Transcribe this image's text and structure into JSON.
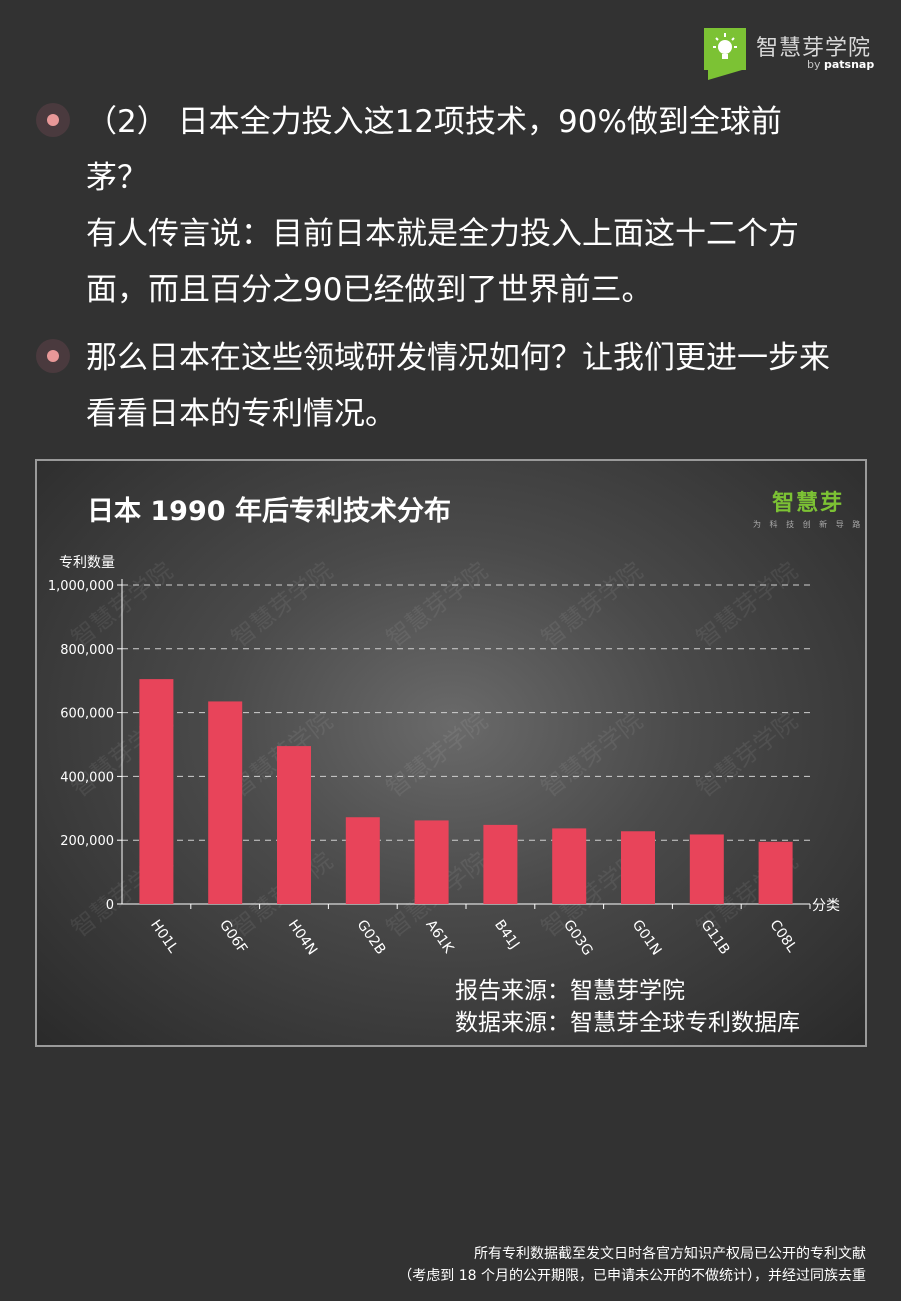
{
  "header": {
    "brand_name": "智慧芽学院",
    "brand_by": "by",
    "brand_partner": "patsnap",
    "logo_icon": "lightbulb-icon"
  },
  "bullets": [
    {
      "icon": "bullet-dot-icon",
      "lines": [
        "（2） 日本全力投入这12项技术，90%做到全球前",
        "茅？",
        "有人传言说：目前日本就是全力投入上面这十二个方",
        "面，而且百分之90已经做到了世界前三。"
      ]
    },
    {
      "icon": "bullet-dot-icon",
      "lines": [
        "那么日本在这些领域研发情况如何？让我们更进一步来",
        "看看日本的专利情况。"
      ]
    }
  ],
  "chart": {
    "brand_name": "智慧芽",
    "brand_tagline": "为 科 技 创 新 导 路",
    "watermark_text": "智慧芽学院",
    "sources": [
      "报告来源：智慧芽学院",
      "数据来源：智慧芽全球专利数据库"
    ]
  },
  "chart_data": {
    "type": "bar",
    "title": "日本 1990 年后专利技术分布",
    "ylabel": "专利数量",
    "xlabel": "分类",
    "categories": [
      "H01L",
      "G06F",
      "H04N",
      "G02B",
      "A61K",
      "B41J",
      "G03G",
      "G01N",
      "G11B",
      "C08L"
    ],
    "values": [
      705000,
      635000,
      495000,
      272000,
      262000,
      248000,
      237000,
      228000,
      218000,
      195000
    ],
    "ylim": [
      0,
      1000000
    ],
    "yticks": [
      0,
      200000,
      400000,
      600000,
      800000,
      1000000
    ],
    "ytick_labels": [
      "0",
      "200,000",
      "400,000",
      "600,000",
      "800,000",
      "1,000,000"
    ],
    "grid": true,
    "bar_color": "#e8445a"
  },
  "footnote": [
    "所有专利数据截至发文日时各官方知识产权局已公开的专利文献",
    "（考虑到 18 个月的公开期限，已申请未公开的不做统计），并经过同族去重"
  ]
}
